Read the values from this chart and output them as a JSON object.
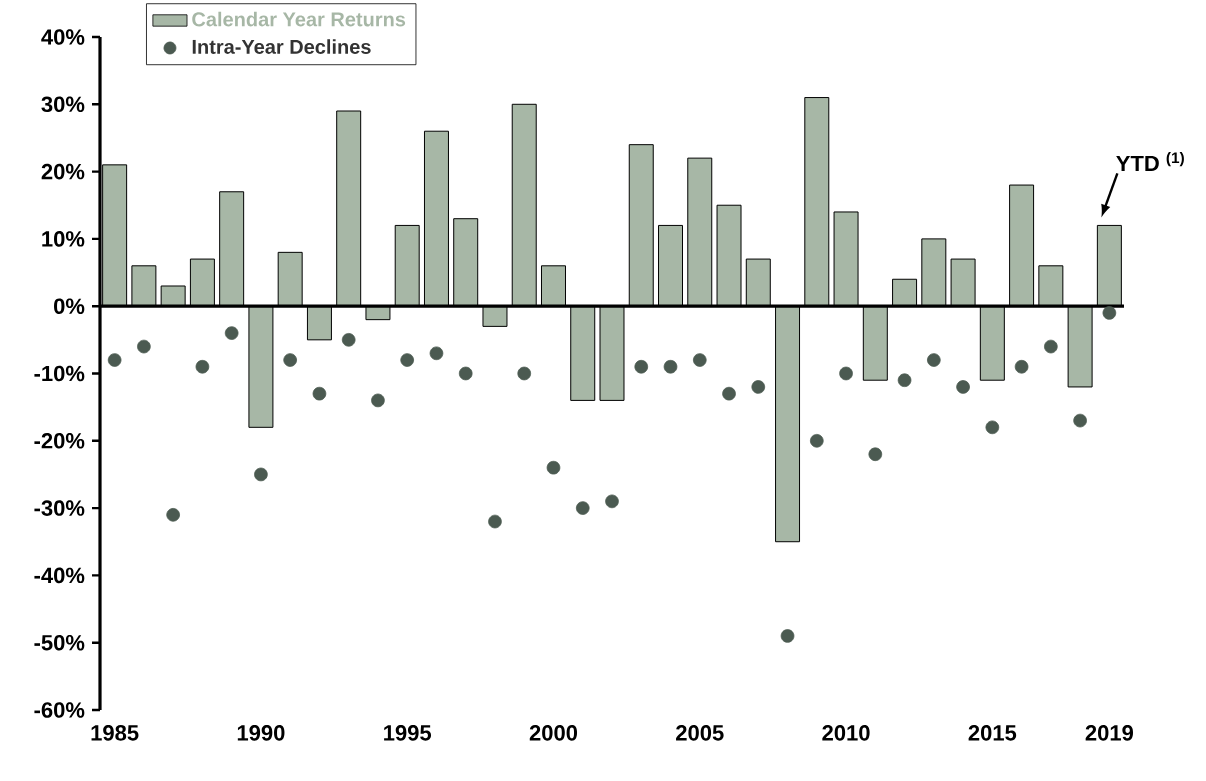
{
  "chart_data": {
    "type": "bar",
    "categories": [
      "1985",
      null,
      null,
      null,
      null,
      "1990",
      null,
      null,
      null,
      null,
      "1995",
      null,
      null,
      null,
      null,
      "2000",
      null,
      null,
      null,
      null,
      "2005",
      null,
      null,
      null,
      null,
      "2010",
      null,
      null,
      null,
      null,
      "2015",
      null,
      null,
      null,
      "2019"
    ],
    "series": [
      {
        "name": "Calendar Year Returns",
        "color": "#a7b7a6",
        "values": [
          21,
          6,
          3,
          7,
          17,
          -18,
          8,
          -5,
          29,
          -2,
          12,
          26,
          13,
          -3,
          30,
          6,
          -14,
          -14,
          24,
          12,
          22,
          15,
          7,
          -35,
          31,
          14,
          -11,
          4,
          10,
          7,
          -11,
          18,
          6,
          -12,
          12
        ]
      },
      {
        "name": "Intra-Year Declines",
        "type": "scatter",
        "color": "#4b5a51",
        "values": [
          -8,
          -6,
          -31,
          -9,
          -4,
          -25,
          -8,
          -13,
          -5,
          -14,
          -8,
          -7,
          -10,
          -32,
          -10,
          -24,
          -30,
          -29,
          -9,
          -9,
          -8,
          -13,
          -12,
          -49,
          -20,
          -10,
          -22,
          -11,
          -8,
          -12,
          -18,
          -9,
          -6,
          -17,
          -1
        ]
      }
    ],
    "ylim": [
      -60,
      40
    ],
    "yticks": [
      {
        "value": -60,
        "label": "-60%"
      },
      {
        "value": -50,
        "label": "-50%"
      },
      {
        "value": -40,
        "label": "-40%"
      },
      {
        "value": -30,
        "label": "-30%"
      },
      {
        "value": -20,
        "label": "-20%"
      },
      {
        "value": -10,
        "label": "-10%"
      },
      {
        "value": 0,
        "label": "0%"
      },
      {
        "value": 10,
        "label": "10%"
      },
      {
        "value": 20,
        "label": "20%"
      },
      {
        "value": 30,
        "label": "30%"
      },
      {
        "value": 40,
        "label": "40%"
      }
    ],
    "legend": "top left",
    "marker": "circle",
    "annotations": [
      {
        "text": "YTD $^{(1)}$",
        "x": "2019",
        "y": 12
      }
    ]
  }
}
